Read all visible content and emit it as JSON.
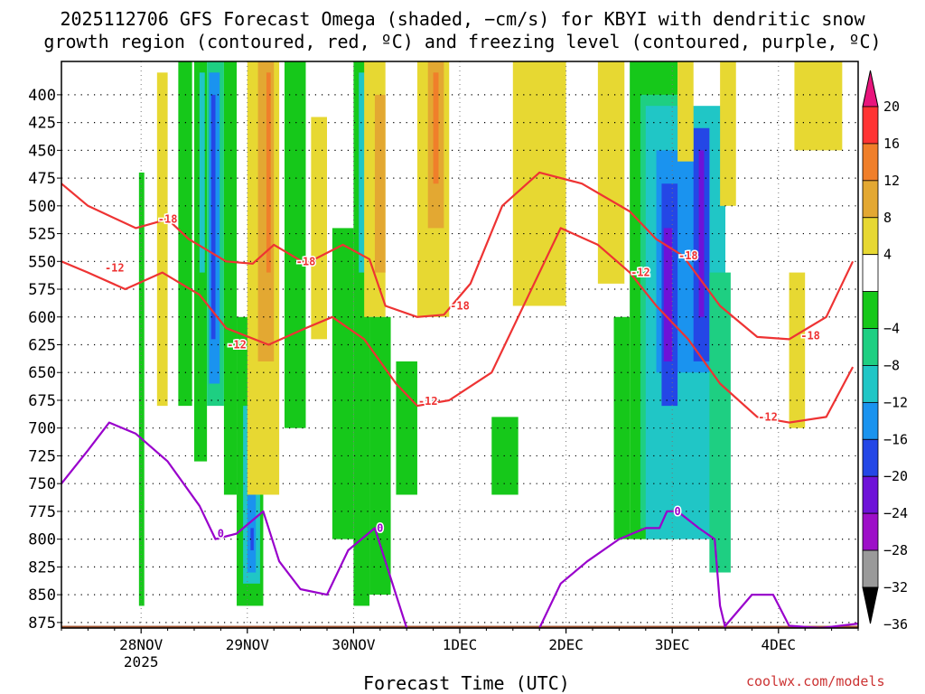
{
  "title_line1": "2025112706 GFS Forecast Omega (shaded, −cm/s) for KBYI with dendritic snow",
  "title_line2": "growth region (contoured, red, ºC) and freezing level (contoured, purple, ºC)",
  "credit": "coolwx.com/models",
  "colors": {
    "dgz_contour": "#ee3333",
    "freezing_contour": "#9900cc",
    "terrain": "#a0522d"
  },
  "chart_data": {
    "type": "heatmap",
    "title": "2025112706 GFS Forecast Omega (shaded, −cm/s) for KBYI with dendritic snow growth region (contoured, red, ºC) and freezing level (contoured, purple, ºC)",
    "xlabel": "Forecast Time (UTC)",
    "ylabel": "",
    "y_axis_reversed": true,
    "ylim": [
      880,
      370
    ],
    "x_ticks": [
      {
        "label": "28NOV",
        "sublabel": "2025",
        "t": 1
      },
      {
        "label": "29NOV",
        "sublabel": "",
        "t": 2
      },
      {
        "label": "30NOV",
        "sublabel": "",
        "t": 3
      },
      {
        "label": "1DEC",
        "sublabel": "",
        "t": 4
      },
      {
        "label": "2DEC",
        "sublabel": "",
        "t": 5
      },
      {
        "label": "3DEC",
        "sublabel": "",
        "t": 6
      },
      {
        "label": "4DEC",
        "sublabel": "",
        "t": 7
      }
    ],
    "xlim": [
      0.25,
      7.75
    ],
    "y_ticks": [
      400,
      425,
      450,
      475,
      500,
      525,
      550,
      575,
      600,
      625,
      650,
      675,
      700,
      725,
      750,
      775,
      800,
      825,
      850,
      875
    ],
    "colorbar": {
      "labels": [
        "20",
        "16",
        "12",
        "8",
        "4",
        "−4",
        "−8",
        "−12",
        "−16",
        "−20",
        "−24",
        "−28",
        "−32",
        "−36"
      ],
      "bins": [
        {
          "lo": 16,
          "hi": 20,
          "color": "#ff3333"
        },
        {
          "lo": 12,
          "hi": 16,
          "color": "#f07f2a"
        },
        {
          "lo": 8,
          "hi": 12,
          "color": "#e3a832"
        },
        {
          "lo": 4,
          "hi": 8,
          "color": "#e7d832"
        },
        {
          "lo": -4,
          "hi": 4,
          "color": "#ffffff"
        },
        {
          "lo": -8,
          "hi": -4,
          "color": "#16c81a"
        },
        {
          "lo": -12,
          "hi": -8,
          "color": "#1ecf82"
        },
        {
          "lo": -16,
          "hi": -12,
          "color": "#20c6c6"
        },
        {
          "lo": -20,
          "hi": -16,
          "color": "#1a93ef"
        },
        {
          "lo": -24,
          "hi": -20,
          "color": "#2447e6"
        },
        {
          "lo": -28,
          "hi": -24,
          "color": "#6e12d8"
        },
        {
          "lo": -32,
          "hi": -28,
          "color": "#9d0fc8"
        },
        {
          "lo": -36,
          "hi": -32,
          "color": "#9a9a9a"
        }
      ],
      "top_overflow_color": "#e8157c",
      "bottom_overflow_color": "#000000"
    },
    "omega_cells": [
      {
        "t0": 0.98,
        "t1": 1.03,
        "p_top": 470,
        "p_bot": 860,
        "value": -6
      },
      {
        "t0": 1.15,
        "t1": 1.25,
        "p_top": 380,
        "p_bot": 680,
        "value": 5
      },
      {
        "t0": 1.35,
        "t1": 1.48,
        "p_top": 370,
        "p_bot": 680,
        "value": -6
      },
      {
        "t0": 1.5,
        "t1": 1.62,
        "p_top": 370,
        "p_bot": 730,
        "value": -6
      },
      {
        "t0": 1.55,
        "t1": 1.6,
        "p_top": 380,
        "p_bot": 560,
        "value": -14
      },
      {
        "t0": 1.62,
        "t1": 1.78,
        "p_top": 370,
        "p_bot": 680,
        "value": -10
      },
      {
        "t0": 1.64,
        "t1": 1.74,
        "p_top": 380,
        "p_bot": 660,
        "value": -18
      },
      {
        "t0": 1.66,
        "t1": 1.7,
        "p_top": 400,
        "p_bot": 620,
        "value": -22
      },
      {
        "t0": 1.78,
        "t1": 1.9,
        "p_top": 370,
        "p_bot": 760,
        "value": -5
      },
      {
        "t0": 1.9,
        "t1": 2.15,
        "p_top": 600,
        "p_bot": 860,
        "value": -6
      },
      {
        "t0": 1.96,
        "t1": 2.12,
        "p_top": 680,
        "p_bot": 840,
        "value": -14
      },
      {
        "t0": 2.0,
        "t1": 2.08,
        "p_top": 760,
        "p_bot": 830,
        "value": -18
      },
      {
        "t0": 2.03,
        "t1": 2.06,
        "p_top": 790,
        "p_bot": 810,
        "value": -22
      },
      {
        "t0": 2.0,
        "t1": 2.3,
        "p_top": 370,
        "p_bot": 760,
        "value": 5
      },
      {
        "t0": 2.1,
        "t1": 2.25,
        "p_top": 370,
        "p_bot": 640,
        "value": 9
      },
      {
        "t0": 2.18,
        "t1": 2.22,
        "p_top": 380,
        "p_bot": 560,
        "value": 14
      },
      {
        "t0": 2.35,
        "t1": 2.55,
        "p_top": 370,
        "p_bot": 700,
        "value": -6
      },
      {
        "t0": 2.6,
        "t1": 2.75,
        "p_top": 420,
        "p_bot": 620,
        "value": 5
      },
      {
        "t0": 2.8,
        "t1": 3.0,
        "p_top": 520,
        "p_bot": 800,
        "value": -6
      },
      {
        "t0": 3.0,
        "t1": 3.15,
        "p_top": 370,
        "p_bot": 860,
        "value": -6
      },
      {
        "t0": 3.05,
        "t1": 3.12,
        "p_top": 380,
        "p_bot": 560,
        "value": -14
      },
      {
        "t0": 3.1,
        "t1": 3.3,
        "p_top": 370,
        "p_bot": 600,
        "value": 5
      },
      {
        "t0": 3.2,
        "t1": 3.3,
        "p_top": 400,
        "p_bot": 560,
        "value": 10
      },
      {
        "t0": 3.15,
        "t1": 3.35,
        "p_top": 600,
        "p_bot": 850,
        "value": -6
      },
      {
        "t0": 3.4,
        "t1": 3.6,
        "p_top": 640,
        "p_bot": 760,
        "value": -6
      },
      {
        "t0": 3.6,
        "t1": 3.9,
        "p_top": 370,
        "p_bot": 600,
        "value": 5
      },
      {
        "t0": 3.7,
        "t1": 3.85,
        "p_top": 370,
        "p_bot": 520,
        "value": 9
      },
      {
        "t0": 3.75,
        "t1": 3.8,
        "p_top": 380,
        "p_bot": 480,
        "value": 14
      },
      {
        "t0": 4.3,
        "t1": 4.55,
        "p_top": 690,
        "p_bot": 760,
        "value": -6
      },
      {
        "t0": 4.5,
        "t1": 5.0,
        "p_top": 370,
        "p_bot": 590,
        "value": 5
      },
      {
        "t0": 5.3,
        "t1": 5.55,
        "p_top": 370,
        "p_bot": 570,
        "value": 5
      },
      {
        "t0": 5.45,
        "t1": 5.6,
        "p_top": 600,
        "p_bot": 800,
        "value": -6
      },
      {
        "t0": 5.6,
        "t1": 6.05,
        "p_top": 370,
        "p_bot": 800,
        "value": -6
      },
      {
        "t0": 5.7,
        "t1": 6.05,
        "p_top": 400,
        "p_bot": 790,
        "value": -10
      },
      {
        "t0": 5.75,
        "t1": 6.5,
        "p_top": 410,
        "p_bot": 800,
        "value": -14
      },
      {
        "t0": 5.85,
        "t1": 6.35,
        "p_top": 450,
        "p_bot": 650,
        "value": -18
      },
      {
        "t0": 5.9,
        "t1": 6.05,
        "p_top": 480,
        "p_bot": 680,
        "value": -22
      },
      {
        "t0": 5.92,
        "t1": 6.0,
        "p_top": 520,
        "p_bot": 640,
        "value": -26
      },
      {
        "t0": 6.2,
        "t1": 6.35,
        "p_top": 430,
        "p_bot": 640,
        "value": -22
      },
      {
        "t0": 6.25,
        "t1": 6.3,
        "p_top": 450,
        "p_bot": 600,
        "value": -26
      },
      {
        "t0": 6.35,
        "t1": 6.55,
        "p_top": 560,
        "p_bot": 830,
        "value": -10
      },
      {
        "t0": 6.05,
        "t1": 6.2,
        "p_top": 370,
        "p_bot": 460,
        "value": 5
      },
      {
        "t0": 6.45,
        "t1": 6.6,
        "p_top": 370,
        "p_bot": 500,
        "value": 5
      },
      {
        "t0": 7.15,
        "t1": 7.6,
        "p_top": 370,
        "p_bot": 450,
        "value": 5
      },
      {
        "t0": 7.1,
        "t1": 7.25,
        "p_top": 560,
        "p_bot": 700,
        "value": 5
      }
    ],
    "contours": [
      {
        "level": "-18",
        "kind": "dgz",
        "points": [
          [
            0.25,
            480
          ],
          [
            0.5,
            500
          ],
          [
            0.95,
            520
          ],
          [
            1.25,
            512
          ],
          [
            1.45,
            530
          ],
          [
            1.8,
            550
          ],
          [
            2.05,
            552
          ],
          [
            2.25,
            535
          ],
          [
            2.55,
            552
          ],
          [
            2.9,
            535
          ],
          [
            3.15,
            548
          ],
          [
            3.3,
            590
          ],
          [
            3.6,
            600
          ],
          [
            3.85,
            598
          ],
          [
            4.1,
            570
          ],
          [
            4.4,
            500
          ],
          [
            4.75,
            470
          ],
          [
            5.15,
            480
          ],
          [
            5.6,
            505
          ],
          [
            5.85,
            530
          ],
          [
            6.1,
            545
          ],
          [
            6.45,
            590
          ],
          [
            6.8,
            618
          ],
          [
            7.1,
            620
          ],
          [
            7.45,
            600
          ],
          [
            7.7,
            550
          ]
        ]
      },
      {
        "level": "-12",
        "kind": "dgz",
        "points": [
          [
            0.25,
            550
          ],
          [
            0.5,
            560
          ],
          [
            0.85,
            575
          ],
          [
            1.2,
            560
          ],
          [
            1.55,
            580
          ],
          [
            1.8,
            610
          ],
          [
            2.2,
            625
          ],
          [
            2.55,
            610
          ],
          [
            2.8,
            600
          ],
          [
            3.1,
            620
          ],
          [
            3.4,
            660
          ],
          [
            3.6,
            680
          ],
          [
            3.9,
            675
          ],
          [
            4.3,
            650
          ],
          [
            4.65,
            580
          ],
          [
            4.95,
            520
          ],
          [
            5.3,
            535
          ],
          [
            5.6,
            560
          ],
          [
            5.85,
            590
          ],
          [
            6.15,
            620
          ],
          [
            6.45,
            660
          ],
          [
            6.8,
            690
          ],
          [
            7.1,
            695
          ],
          [
            7.45,
            690
          ],
          [
            7.7,
            645
          ]
        ]
      },
      {
        "level": "0",
        "kind": "freezing",
        "points": [
          [
            0.25,
            750
          ],
          [
            0.5,
            720
          ],
          [
            0.7,
            695
          ],
          [
            0.95,
            705
          ],
          [
            1.25,
            730
          ],
          [
            1.55,
            770
          ],
          [
            1.7,
            800
          ],
          [
            1.9,
            795
          ],
          [
            2.15,
            775
          ],
          [
            2.3,
            820
          ],
          [
            2.5,
            845
          ],
          [
            2.75,
            850
          ],
          [
            2.95,
            810
          ],
          [
            3.2,
            790
          ],
          [
            3.4,
            850
          ],
          [
            3.5,
            880
          ]
        ]
      },
      {
        "level": "",
        "kind": "freezing",
        "points": [
          [
            4.75,
            880
          ],
          [
            4.95,
            840
          ],
          [
            5.2,
            820
          ],
          [
            5.5,
            800
          ],
          [
            5.75,
            790
          ],
          [
            5.88,
            790
          ],
          [
            5.95,
            775
          ],
          [
            6.05,
            775
          ],
          [
            6.25,
            790
          ],
          [
            6.4,
            800
          ],
          [
            6.45,
            860
          ],
          [
            6.5,
            880
          ]
        ]
      },
      {
        "level": "",
        "kind": "freezing",
        "points": [
          [
            6.5,
            878
          ],
          [
            6.75,
            850
          ],
          [
            6.95,
            850
          ],
          [
            7.1,
            878
          ],
          [
            7.4,
            880
          ],
          [
            7.75,
            876
          ]
        ]
      }
    ],
    "contour_labels": [
      {
        "text": "-18",
        "t": 1.25,
        "p": 512
      },
      {
        "text": "-12",
        "t": 0.75,
        "p": 556
      },
      {
        "text": "-18",
        "t": 2.55,
        "p": 550
      },
      {
        "text": "-12",
        "t": 1.9,
        "p": 625
      },
      {
        "text": "-18",
        "t": 4.0,
        "p": 590
      },
      {
        "text": "-12",
        "t": 3.7,
        "p": 676
      },
      {
        "text": "-18",
        "t": 6.15,
        "p": 545
      },
      {
        "text": "-12",
        "t": 5.7,
        "p": 560
      },
      {
        "text": "-18",
        "t": 7.3,
        "p": 617
      },
      {
        "text": "-12",
        "t": 6.9,
        "p": 690
      },
      {
        "text": "0",
        "t": 1.75,
        "p": 795
      },
      {
        "text": "0",
        "t": 3.25,
        "p": 790
      },
      {
        "text": "0",
        "t": 6.05,
        "p": 775
      }
    ]
  }
}
